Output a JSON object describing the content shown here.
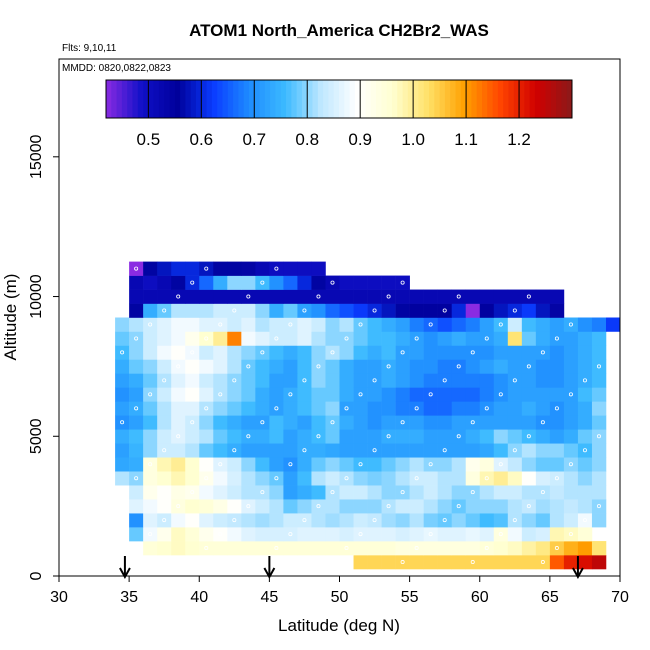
{
  "chart_data": {
    "type": "heatmap",
    "title": "ATOM1 North_America CH2Br2_WAS",
    "subtitle_flights": "Flts: 9,10,11",
    "subtitle_dates": "MMDD: 0820,0822,0823",
    "xlabel": "Latitude (deg N)",
    "ylabel": "Altitude (m)",
    "xlim": [
      30,
      70
    ],
    "ylim": [
      0,
      18500
    ],
    "x_ticks": [
      "30",
      "35",
      "40",
      "45",
      "50",
      "55",
      "60",
      "65",
      "70"
    ],
    "y_ticks": [
      "0",
      "5000",
      "10000",
      "15000"
    ],
    "colorbar": {
      "range": [
        0.42,
        1.3
      ],
      "ticks": [
        "0.5",
        "0.6",
        "0.7",
        "0.8",
        "0.9",
        "1.0",
        "1.1",
        "1.2"
      ],
      "colors": [
        "#8a2be2",
        "#1010c8",
        "#00009b",
        "#0a3cff",
        "#1e8cff",
        "#3cbaff",
        "#bfe8ff",
        "#ffffff",
        "#ffffd0",
        "#ffe066",
        "#ffa000",
        "#ff4500",
        "#d00000",
        "#8b1a1a"
      ]
    },
    "profile_arrows_lat": [
      34.7,
      45,
      67
    ],
    "alt_bins_m": [
      500,
      1000,
      1500,
      2000,
      2500,
      3000,
      3500,
      4000,
      4500,
      5000,
      5500,
      6000,
      6500,
      7000,
      7500,
      8000,
      8500,
      9000,
      9500,
      10000,
      10500,
      11000
    ],
    "lat_bins_start": 34,
    "lat_bin_width": 1,
    "ratio_rows": [
      [
        null,
        null,
        null,
        null,
        null,
        null,
        null,
        null,
        null,
        null,
        null,
        null,
        null,
        null,
        null,
        null,
        null,
        1.04,
        1.04,
        1.04,
        1.04,
        1.04,
        1.04,
        1.04,
        1.04,
        1.04,
        1.04,
        1.04,
        1.04,
        1.04,
        1.04,
        1.15,
        1.2,
        1.22,
        1.25,
        null
      ],
      [
        null,
        null,
        0.95,
        0.96,
        0.97,
        0.96,
        0.95,
        0.95,
        0.95,
        0.95,
        0.95,
        0.95,
        0.95,
        0.95,
        0.95,
        0.95,
        0.95,
        0.95,
        0.95,
        0.95,
        0.94,
        0.94,
        0.94,
        0.94,
        0.94,
        0.94,
        0.95,
        0.96,
        0.97,
        0.99,
        1.01,
        1.05,
        1.08,
        1.1,
        1.02,
        null
      ],
      [
        null,
        0.78,
        0.88,
        0.92,
        0.97,
        0.95,
        0.92,
        0.9,
        0.88,
        0.86,
        0.85,
        0.85,
        0.85,
        0.86,
        0.86,
        0.86,
        0.85,
        0.86,
        0.86,
        0.86,
        0.85,
        0.86,
        0.87,
        0.86,
        0.86,
        0.87,
        0.86,
        0.94,
        0.88,
        0.84,
        0.85,
        0.98,
        0.97,
        0.95,
        null,
        null
      ],
      [
        null,
        0.7,
        0.86,
        0.84,
        0.88,
        0.9,
        0.86,
        0.84,
        0.83,
        0.82,
        0.81,
        0.82,
        0.84,
        0.84,
        0.82,
        0.81,
        0.82,
        0.84,
        0.83,
        0.81,
        0.8,
        0.82,
        0.79,
        0.78,
        0.8,
        0.78,
        0.76,
        0.77,
        0.82,
        0.8,
        0.78,
        0.82,
        0.84,
        0.88,
        0.8,
        null
      ],
      [
        null,
        0.86,
        0.88,
        0.9,
        0.94,
        0.96,
        0.95,
        0.93,
        0.9,
        0.86,
        0.84,
        0.82,
        0.78,
        0.8,
        0.82,
        0.82,
        0.8,
        0.8,
        0.8,
        0.82,
        0.84,
        0.84,
        0.82,
        0.8,
        0.78,
        0.8,
        0.8,
        0.8,
        0.82,
        0.83,
        0.81,
        0.82,
        0.83,
        0.82,
        0.8,
        null
      ],
      [
        null,
        0.84,
        0.92,
        0.9,
        0.93,
        0.92,
        0.88,
        0.86,
        0.84,
        0.82,
        0.82,
        0.8,
        0.72,
        0.74,
        0.76,
        0.82,
        0.84,
        0.84,
        0.82,
        0.8,
        0.8,
        0.82,
        0.84,
        0.82,
        0.8,
        0.8,
        0.82,
        0.84,
        0.84,
        0.82,
        0.82,
        0.83,
        0.82,
        0.82,
        0.82,
        null
      ],
      [
        0.82,
        0.8,
        0.94,
        0.96,
        0.98,
        0.96,
        0.92,
        0.88,
        0.85,
        0.82,
        0.8,
        0.78,
        0.72,
        0.76,
        0.82,
        0.84,
        0.82,
        0.8,
        0.79,
        0.8,
        0.82,
        0.84,
        0.84,
        0.82,
        0.82,
        0.94,
        0.98,
        1.0,
        0.97,
        0.9,
        0.85,
        0.84,
        0.82,
        0.8,
        0.82,
        null
      ],
      [
        0.73,
        0.74,
        0.94,
        0.98,
        1.0,
        0.96,
        0.9,
        0.86,
        0.84,
        0.8,
        0.76,
        0.72,
        0.7,
        0.74,
        0.78,
        0.8,
        0.78,
        0.76,
        0.76,
        0.78,
        0.8,
        0.82,
        0.8,
        0.8,
        0.82,
        0.92,
        0.94,
        0.86,
        0.83,
        0.8,
        0.78,
        0.78,
        0.8,
        0.78,
        0.8,
        null
      ],
      [
        0.72,
        0.75,
        0.8,
        0.84,
        0.84,
        0.82,
        0.78,
        0.76,
        0.74,
        0.72,
        0.72,
        0.72,
        0.72,
        0.74,
        0.74,
        0.73,
        0.72,
        0.72,
        0.72,
        0.72,
        0.72,
        0.72,
        0.72,
        0.72,
        0.72,
        0.72,
        0.73,
        0.76,
        0.8,
        0.82,
        0.8,
        0.8,
        0.78,
        0.76,
        0.8,
        null
      ],
      [
        0.74,
        0.76,
        0.8,
        0.84,
        0.86,
        0.84,
        0.82,
        0.78,
        0.76,
        0.74,
        0.74,
        0.76,
        0.72,
        0.74,
        0.76,
        0.78,
        0.72,
        0.72,
        0.72,
        0.74,
        0.74,
        0.74,
        0.72,
        0.72,
        0.72,
        0.74,
        0.76,
        0.8,
        0.78,
        0.76,
        0.74,
        0.72,
        0.74,
        0.78,
        0.8,
        null
      ],
      [
        0.7,
        0.72,
        0.76,
        0.82,
        0.86,
        0.84,
        0.8,
        0.76,
        0.74,
        0.72,
        0.72,
        0.76,
        0.74,
        0.72,
        0.76,
        0.78,
        0.74,
        0.72,
        0.7,
        0.72,
        0.72,
        0.72,
        0.7,
        0.7,
        0.72,
        0.72,
        0.72,
        0.72,
        0.72,
        0.72,
        0.7,
        0.7,
        0.72,
        0.74,
        0.78,
        null
      ],
      [
        0.72,
        0.74,
        0.78,
        0.82,
        0.86,
        0.86,
        0.82,
        0.8,
        0.78,
        0.76,
        0.74,
        0.72,
        0.74,
        0.76,
        0.78,
        0.8,
        0.72,
        0.72,
        0.7,
        0.7,
        0.68,
        0.68,
        0.66,
        0.66,
        0.68,
        0.68,
        0.7,
        0.72,
        0.72,
        0.74,
        0.72,
        0.7,
        0.72,
        0.74,
        0.8,
        null
      ],
      [
        0.7,
        0.72,
        0.8,
        0.84,
        0.88,
        0.9,
        0.86,
        0.82,
        0.8,
        0.78,
        0.74,
        0.72,
        0.74,
        0.76,
        0.78,
        0.78,
        0.74,
        0.72,
        0.72,
        0.7,
        0.68,
        0.66,
        0.66,
        0.66,
        0.66,
        0.66,
        0.68,
        0.7,
        0.72,
        0.72,
        0.72,
        0.72,
        0.72,
        0.76,
        0.78,
        null
      ],
      [
        0.72,
        0.74,
        0.78,
        0.82,
        0.86,
        0.88,
        0.84,
        0.82,
        0.8,
        0.78,
        0.76,
        0.72,
        0.72,
        0.76,
        0.8,
        0.78,
        0.74,
        0.72,
        0.72,
        0.74,
        0.72,
        0.7,
        0.68,
        0.68,
        0.68,
        0.68,
        0.68,
        0.7,
        0.72,
        0.72,
        0.7,
        0.7,
        0.72,
        0.74,
        0.76,
        null
      ],
      [
        0.74,
        0.78,
        0.8,
        0.84,
        0.88,
        0.9,
        0.88,
        0.86,
        0.82,
        0.78,
        0.76,
        0.74,
        0.72,
        0.76,
        0.8,
        0.78,
        0.74,
        0.72,
        0.72,
        0.74,
        0.72,
        0.7,
        0.7,
        0.68,
        0.68,
        0.7,
        0.72,
        0.74,
        0.72,
        0.72,
        0.7,
        0.7,
        0.72,
        0.74,
        0.76,
        null
      ],
      [
        0.76,
        0.8,
        0.84,
        0.88,
        0.9,
        0.88,
        0.84,
        0.86,
        0.82,
        0.8,
        0.78,
        0.76,
        0.74,
        0.76,
        0.8,
        0.82,
        0.8,
        0.76,
        0.74,
        0.76,
        0.72,
        0.72,
        0.7,
        0.7,
        0.7,
        0.7,
        0.7,
        0.72,
        0.72,
        0.72,
        0.72,
        0.7,
        0.72,
        0.74,
        0.76,
        null
      ],
      [
        0.78,
        0.8,
        0.84,
        0.86,
        0.88,
        0.92,
        0.96,
        1.0,
        1.12,
        0.88,
        0.86,
        0.84,
        0.84,
        0.86,
        0.82,
        0.8,
        0.8,
        0.78,
        0.76,
        0.76,
        0.74,
        0.72,
        0.7,
        0.72,
        0.74,
        0.72,
        0.72,
        0.74,
        1.02,
        0.78,
        0.74,
        0.72,
        0.72,
        0.74,
        0.76,
        null
      ],
      [
        0.8,
        0.82,
        0.84,
        0.86,
        0.88,
        0.88,
        0.86,
        0.86,
        0.84,
        0.86,
        0.82,
        0.84,
        0.84,
        0.86,
        0.84,
        0.8,
        0.82,
        0.78,
        0.76,
        0.74,
        0.72,
        0.68,
        0.66,
        0.64,
        0.66,
        0.68,
        0.72,
        0.76,
        0.84,
        0.76,
        0.74,
        0.72,
        0.74,
        0.7,
        0.68,
        0.62
      ],
      [
        null,
        0.56,
        0.74,
        0.78,
        0.82,
        0.82,
        0.82,
        0.84,
        0.84,
        0.84,
        0.8,
        0.74,
        0.78,
        0.72,
        0.7,
        0.66,
        0.64,
        0.62,
        0.6,
        0.58,
        0.56,
        0.55,
        0.55,
        0.55,
        0.6,
        0.42,
        0.55,
        0.58,
        0.6,
        0.62,
        0.58,
        0.54,
        null,
        null,
        null,
        null
      ],
      [
        null,
        0.52,
        0.52,
        0.52,
        0.52,
        0.52,
        0.52,
        0.52,
        0.52,
        0.52,
        0.52,
        0.52,
        0.52,
        0.52,
        0.52,
        0.52,
        0.52,
        0.52,
        0.52,
        0.52,
        0.52,
        0.52,
        0.52,
        0.52,
        0.52,
        0.52,
        0.52,
        0.52,
        0.52,
        0.52,
        0.52,
        0.52,
        null,
        null,
        null,
        null
      ],
      [
        null,
        0.52,
        0.5,
        0.52,
        0.56,
        0.6,
        0.66,
        0.74,
        0.8,
        0.8,
        0.76,
        0.7,
        0.66,
        0.6,
        0.56,
        0.52,
        0.5,
        0.5,
        0.5,
        0.5,
        0.5,
        null,
        null,
        null,
        null,
        null,
        null,
        null,
        null,
        null,
        null,
        null,
        null,
        null,
        null,
        null
      ],
      [
        null,
        0.42,
        0.56,
        0.58,
        0.6,
        0.6,
        0.58,
        0.56,
        0.56,
        0.54,
        0.52,
        0.5,
        0.5,
        0.5,
        0.5,
        null,
        null,
        null,
        null,
        null,
        null,
        null,
        null,
        null,
        null,
        null,
        null,
        null,
        null,
        null,
        null,
        null,
        null,
        null,
        null,
        null
      ]
    ]
  }
}
